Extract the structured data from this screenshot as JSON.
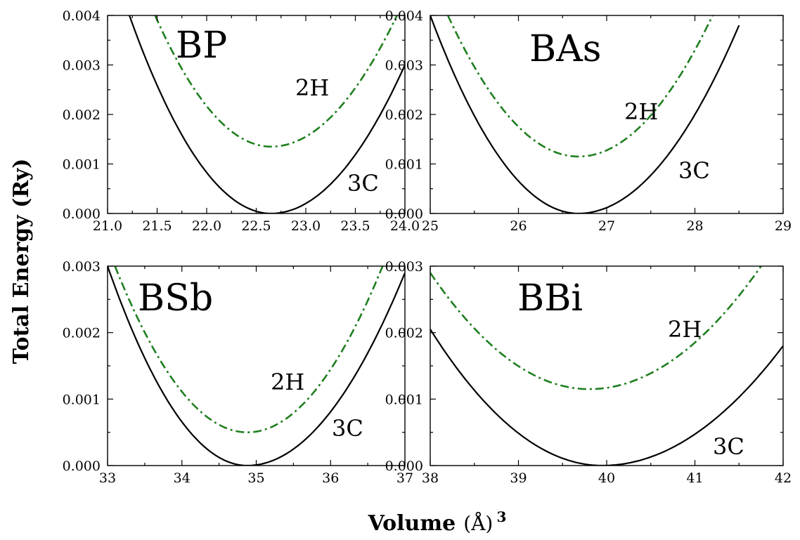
{
  "figure": {
    "ylabel": "Total Energy (Ry)",
    "xlabel_main": "Volume",
    "xlabel_unit": "(Å)",
    "xlabel_exp": "3"
  },
  "colors": {
    "c3": "#000000",
    "h2": "#1f7f1f"
  },
  "chart_data": [
    {
      "type": "line",
      "panel_label": "BP",
      "xlim": [
        21.0,
        24.0
      ],
      "ylim": [
        0.0,
        0.004
      ],
      "xticks": [
        21.0,
        21.5,
        22.0,
        22.5,
        23.0,
        23.5,
        24.0
      ],
      "xtick_labels": [
        "21.0",
        "21.5",
        "22.0",
        "22.5",
        "23.0",
        "23.5",
        "24.0"
      ],
      "yticks": [
        0.0,
        0.001,
        0.002,
        0.003,
        0.004
      ],
      "ytick_labels": [
        "0.000",
        "0.001",
        "0.002",
        "0.003",
        "0.004"
      ],
      "series": [
        {
          "name": "3C",
          "style": "solid",
          "min_x": 22.65,
          "min_y": 0.0,
          "x_range": [
            21.2,
            24.0
          ],
          "x": [
            21.22,
            22.0,
            22.65,
            23.5,
            24.0
          ],
          "y": [
            0.004,
            0.0009,
            0.0,
            0.0013,
            0.003
          ]
        },
        {
          "name": "2H",
          "style": "dashdot",
          "min_x": 22.65,
          "min_y": 0.00135,
          "x_range": [
            21.48,
            23.92
          ],
          "x": [
            21.48,
            22.0,
            22.65,
            23.5,
            23.92
          ],
          "y": [
            0.004,
            0.00195,
            0.00135,
            0.0027,
            0.004
          ]
        }
      ]
    },
    {
      "type": "line",
      "panel_label": "BAs",
      "xlim": [
        25,
        29
      ],
      "ylim": [
        0.0,
        0.004
      ],
      "xticks": [
        25,
        26,
        27,
        28,
        29
      ],
      "xtick_labels": [
        "25",
        "26",
        "27",
        "28",
        "29"
      ],
      "yticks": [
        0.0,
        0.001,
        0.002,
        0.003,
        0.004
      ],
      "ytick_labels": [
        "0.000",
        "0.001",
        "0.002",
        "0.003",
        "0.004"
      ],
      "series": [
        {
          "name": "3C",
          "style": "solid",
          "min_x": 26.68,
          "min_y": 0.0,
          "x_range": [
            25.0,
            28.5
          ],
          "x": [
            25.0,
            26.0,
            26.68,
            27.5,
            28.5
          ],
          "y": [
            0.004,
            0.00085,
            0.0,
            0.0011,
            0.0038
          ]
        },
        {
          "name": "2H",
          "style": "dashdot",
          "min_x": 26.68,
          "min_y": 0.00115,
          "x_range": [
            25.2,
            28.2
          ],
          "x": [
            25.2,
            26.0,
            26.68,
            27.5,
            28.2
          ],
          "y": [
            0.004,
            0.0018,
            0.00115,
            0.0022,
            0.004
          ]
        }
      ]
    },
    {
      "type": "line",
      "panel_label": "BSb",
      "xlim": [
        33,
        37
      ],
      "ylim": [
        0.0,
        0.003
      ],
      "xticks": [
        33,
        34,
        35,
        36,
        37
      ],
      "xtick_labels": [
        "33",
        "34",
        "35",
        "36",
        "37"
      ],
      "yticks": [
        0.0,
        0.001,
        0.002,
        0.003
      ],
      "ytick_labels": [
        "0.000",
        "0.001",
        "0.002",
        "0.003"
      ],
      "series": [
        {
          "name": "3C",
          "style": "solid",
          "min_x": 34.88,
          "min_y": 0.0,
          "x_range": [
            33.0,
            37.0
          ],
          "x": [
            33.0,
            34.0,
            34.88,
            36.0,
            37.0
          ],
          "y": [
            0.003,
            0.00065,
            0.0,
            0.0011,
            0.0029
          ]
        },
        {
          "name": "2H",
          "style": "dashdot",
          "min_x": 34.88,
          "min_y": 0.0005,
          "x_range": [
            33.1,
            36.7
          ],
          "x": [
            33.1,
            34.0,
            34.88,
            36.0,
            36.7
          ],
          "y": [
            0.003,
            0.0011,
            0.0005,
            0.0016,
            0.003
          ]
        }
      ]
    },
    {
      "type": "line",
      "panel_label": "BBi",
      "xlim": [
        38,
        42
      ],
      "ylim": [
        0.0,
        0.003
      ],
      "xticks": [
        38,
        39,
        40,
        41,
        42
      ],
      "xtick_labels": [
        "38",
        "39",
        "40",
        "41",
        "42"
      ],
      "yticks": [
        0.0,
        0.001,
        0.002,
        0.003
      ],
      "ytick_labels": [
        "0.000",
        "0.001",
        "0.002",
        "0.003"
      ],
      "series": [
        {
          "name": "3C",
          "style": "solid",
          "min_x": 39.95,
          "min_y": 0.0,
          "x_range": [
            38.0,
            42.0
          ],
          "x": [
            38.0,
            39.0,
            39.95,
            41.0,
            42.0
          ],
          "y": [
            0.00205,
            0.0005,
            0.0,
            0.00055,
            0.0018
          ]
        },
        {
          "name": "2H",
          "style": "dashdot",
          "min_x": 39.8,
          "min_y": 0.00115,
          "x_range": [
            38.0,
            41.75
          ],
          "x": [
            38.0,
            39.0,
            39.8,
            41.0,
            41.75
          ],
          "y": [
            0.0029,
            0.0016,
            0.00115,
            0.0017,
            0.003
          ]
        }
      ]
    }
  ]
}
